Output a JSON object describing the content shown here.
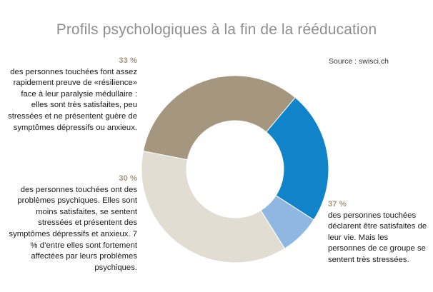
{
  "title": "Profils psychologiques à la fin de la rééducation",
  "source": "Source : swisci.ch",
  "chart_data": {
    "type": "pie",
    "title": "Profils psychologiques à la fin de la rééducation",
    "slices": [
      {
        "label": "33 %",
        "value": 33,
        "color": "#a4967f"
      },
      {
        "label": "30 %",
        "value": 23,
        "color": "#1183c9"
      },
      {
        "label": "30 %",
        "value": 7,
        "color": "#8fb7e1"
      },
      {
        "label": "37 %",
        "value": 37,
        "color": "#e2ddd3"
      }
    ]
  },
  "notes": {
    "resilient": {
      "pct": "33 %",
      "text": "des personnes touchées font assez rapidement preuve de «résilience» face à leur paralysie médullaire : elles sont très satisfaites, peu stressées et ne présentent guère de symptômes dépressifs ou anxieux."
    },
    "problems": {
      "pct": "30 %",
      "text": "des personnes touchées ont des problèmes psychiques. Elles sont moins satisfaites, se sentent stressées et présentent des symptômes dépressifs et anxieux. 7 % d’entre elles sont fortement affectées par leurs problèmes psychiques."
    },
    "stressed": {
      "pct": "37 %",
      "text": "des personnes touchées déclarent être satisfaites de leur vie. Mais les personnes de ce groupe se sentent très stressées."
    }
  }
}
